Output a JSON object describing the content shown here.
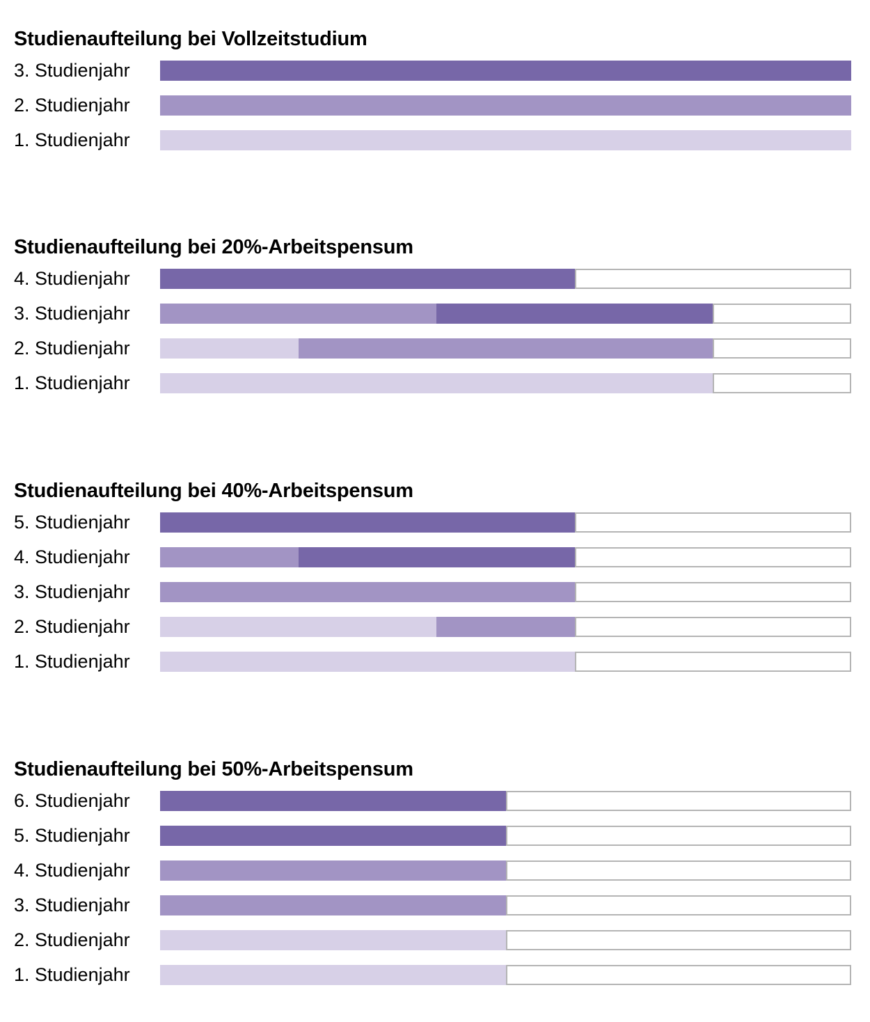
{
  "colors": {
    "dark": "#7767a8",
    "medium": "#a294c4",
    "light": "#d7d0e7",
    "remainder_fill": "#ffffff",
    "remainder_border": "#b4b4b4",
    "text": "#000000",
    "background": "#ffffff"
  },
  "chart_data": [
    {
      "type": "bar",
      "title": "Studienaufteilung bei Vollzeitstudium",
      "orientation": "horizontal",
      "x_range": [
        0,
        1
      ],
      "grid": false,
      "legend": false,
      "bars": [
        {
          "label": "3. Studienjahr",
          "segments": [
            {
              "color": "dark",
              "share": 1.0
            }
          ],
          "remainder": 0
        },
        {
          "label": "2. Studienjahr",
          "segments": [
            {
              "color": "medium",
              "share": 1.0
            }
          ],
          "remainder": 0
        },
        {
          "label": "1. Studienjahr",
          "segments": [
            {
              "color": "light",
              "share": 1.0
            }
          ],
          "remainder": 0
        }
      ]
    },
    {
      "type": "bar",
      "title": "Studienaufteilung bei 20%-Arbeitspensum",
      "orientation": "horizontal",
      "x_range": [
        0,
        1
      ],
      "grid": false,
      "legend": false,
      "bars": [
        {
          "label": "4. Studienjahr",
          "segments": [
            {
              "color": "dark",
              "share": 0.6
            }
          ],
          "remainder": 0.4
        },
        {
          "label": "3. Studienjahr",
          "segments": [
            {
              "color": "medium",
              "share": 0.4
            },
            {
              "color": "dark",
              "share": 0.4
            }
          ],
          "remainder": 0.2
        },
        {
          "label": "2. Studienjahr",
          "segments": [
            {
              "color": "light",
              "share": 0.2
            },
            {
              "color": "medium",
              "share": 0.6
            }
          ],
          "remainder": 0.2
        },
        {
          "label": "1. Studienjahr",
          "segments": [
            {
              "color": "light",
              "share": 0.8
            }
          ],
          "remainder": 0.2
        }
      ]
    },
    {
      "type": "bar",
      "title": "Studienaufteilung bei 40%-Arbeitspensum",
      "orientation": "horizontal",
      "x_range": [
        0,
        1
      ],
      "grid": false,
      "legend": false,
      "bars": [
        {
          "label": "5. Studienjahr",
          "segments": [
            {
              "color": "dark",
              "share": 0.6
            }
          ],
          "remainder": 0.4
        },
        {
          "label": "4. Studienjahr",
          "segments": [
            {
              "color": "medium",
              "share": 0.2
            },
            {
              "color": "dark",
              "share": 0.4
            }
          ],
          "remainder": 0.4
        },
        {
          "label": "3. Studienjahr",
          "segments": [
            {
              "color": "medium",
              "share": 0.6
            }
          ],
          "remainder": 0.4
        },
        {
          "label": "2. Studienjahr",
          "segments": [
            {
              "color": "light",
              "share": 0.4
            },
            {
              "color": "medium",
              "share": 0.2
            }
          ],
          "remainder": 0.4
        },
        {
          "label": "1. Studienjahr",
          "segments": [
            {
              "color": "light",
              "share": 0.6
            }
          ],
          "remainder": 0.4
        }
      ]
    },
    {
      "type": "bar",
      "title": "Studienaufteilung bei 50%-Arbeitspensum",
      "orientation": "horizontal",
      "x_range": [
        0,
        1
      ],
      "grid": false,
      "legend": false,
      "bars": [
        {
          "label": "6. Studienjahr",
          "segments": [
            {
              "color": "dark",
              "share": 0.5
            }
          ],
          "remainder": 0.5
        },
        {
          "label": "5. Studienjahr",
          "segments": [
            {
              "color": "dark",
              "share": 0.5
            }
          ],
          "remainder": 0.5
        },
        {
          "label": "4. Studienjahr",
          "segments": [
            {
              "color": "medium",
              "share": 0.5
            }
          ],
          "remainder": 0.5
        },
        {
          "label": "3. Studienjahr",
          "segments": [
            {
              "color": "medium",
              "share": 0.5
            }
          ],
          "remainder": 0.5
        },
        {
          "label": "2. Studienjahr",
          "segments": [
            {
              "color": "light",
              "share": 0.5
            }
          ],
          "remainder": 0.5
        },
        {
          "label": "1. Studienjahr",
          "segments": [
            {
              "color": "light",
              "share": 0.5
            }
          ],
          "remainder": 0.5
        }
      ]
    }
  ]
}
